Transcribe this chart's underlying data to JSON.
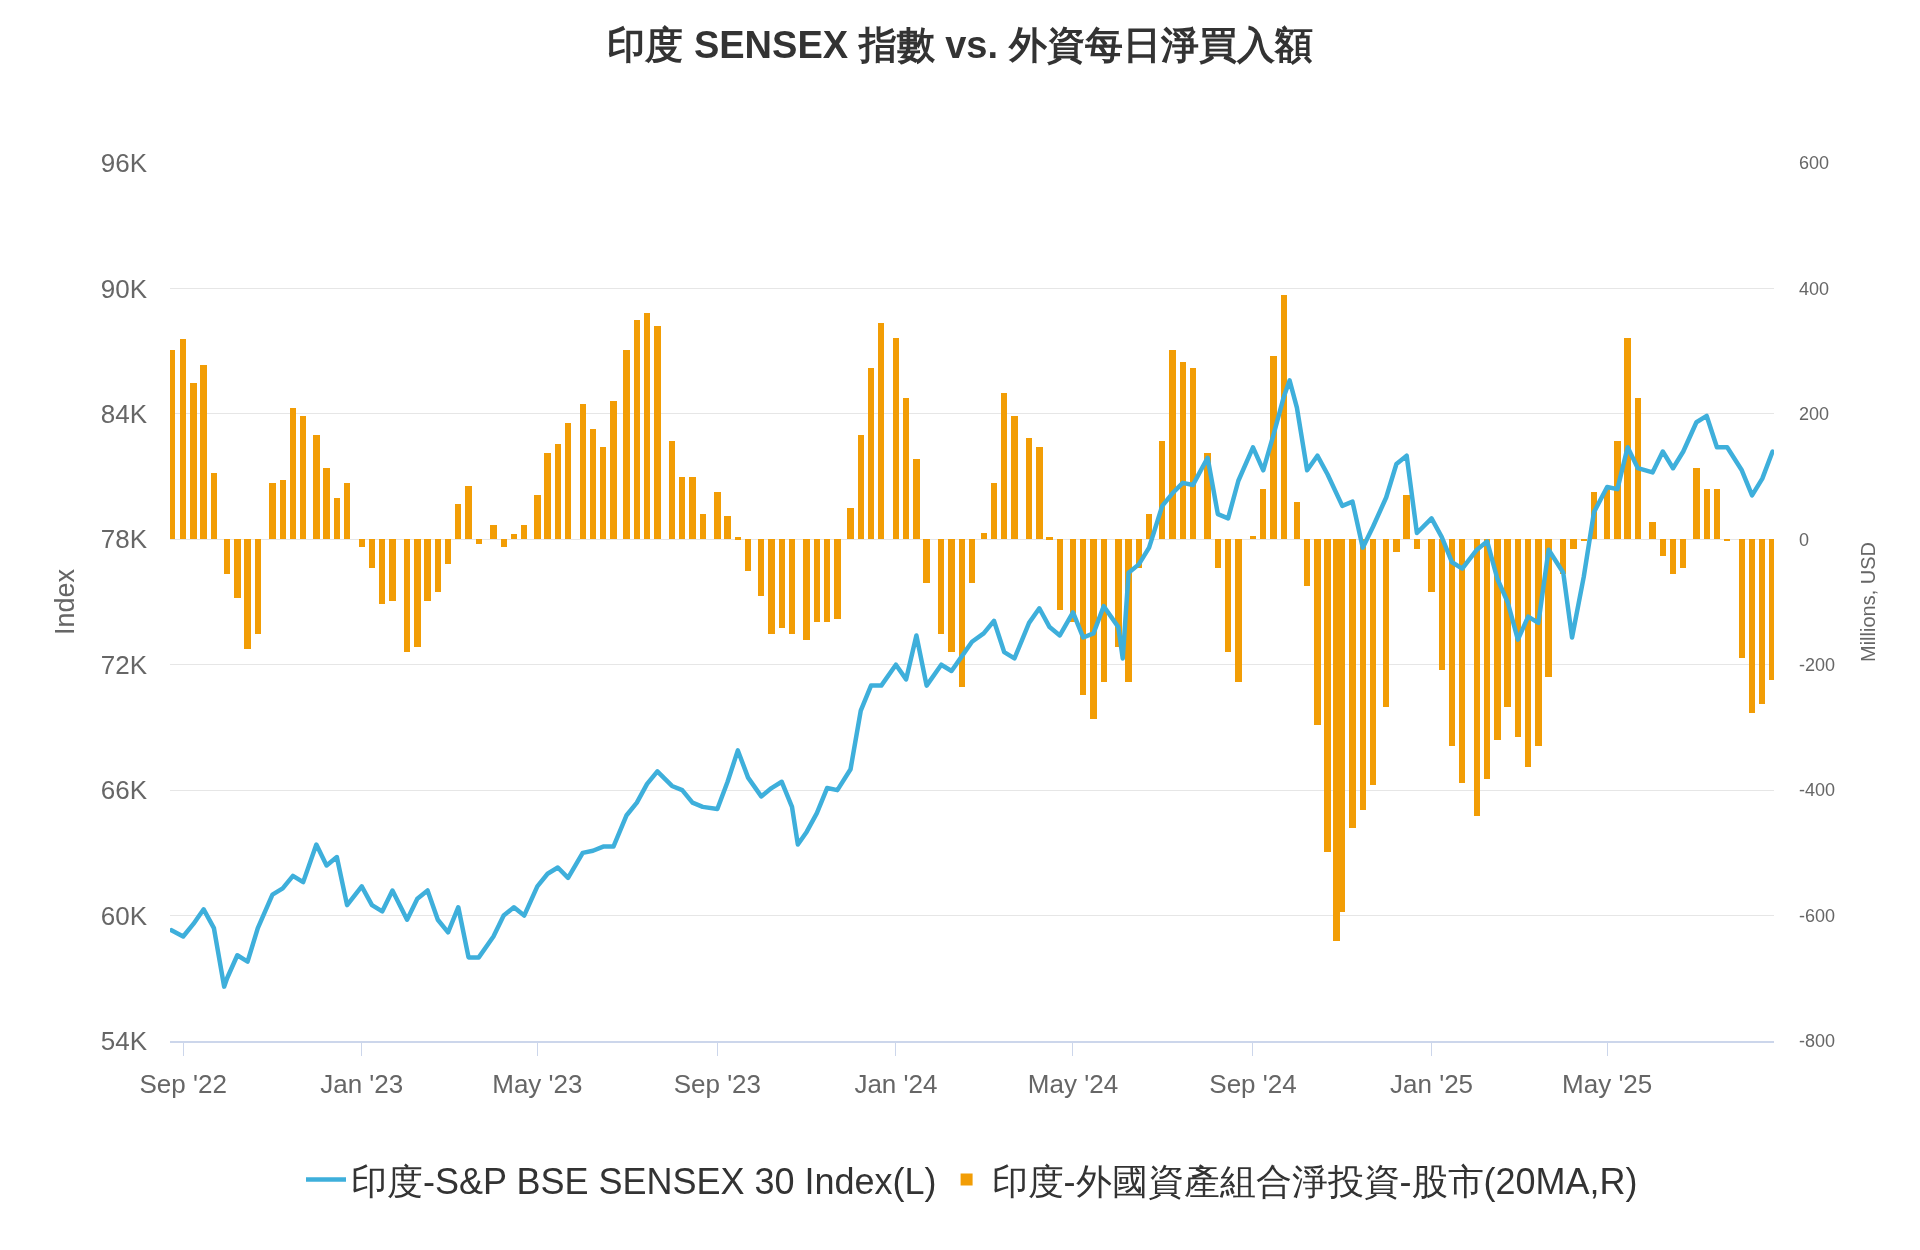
{
  "chart_data": {
    "type": "line",
    "title": "印度 SENSEX 指數 vs. 外資每日淨買入額",
    "ylabel": "Index",
    "y2label": "Millions, USD",
    "xlim": [
      "2022-08-23",
      "2025-08-23"
    ],
    "xticks": [
      {
        "value": "2022-09-01",
        "label": "Sep '22"
      },
      {
        "value": "2023-01-01",
        "label": "Jan '23"
      },
      {
        "value": "2023-05-01",
        "label": "May '23"
      },
      {
        "value": "2023-09-01",
        "label": "Sep '23"
      },
      {
        "value": "2024-01-01",
        "label": "Jan '24"
      },
      {
        "value": "2024-05-01",
        "label": "May '24"
      },
      {
        "value": "2024-09-01",
        "label": "Sep '24"
      },
      {
        "value": "2025-01-01",
        "label": "Jan '25"
      },
      {
        "value": "2025-05-01",
        "label": "May '25"
      }
    ],
    "ylim": [
      54000,
      96000
    ],
    "yticks": [
      {
        "value": 54000,
        "label": "54K"
      },
      {
        "value": 60000,
        "label": "60K"
      },
      {
        "value": 66000,
        "label": "66K"
      },
      {
        "value": 72000,
        "label": "72K"
      },
      {
        "value": 78000,
        "label": "78K"
      },
      {
        "value": 84000,
        "label": "84K"
      },
      {
        "value": 90000,
        "label": "90K"
      },
      {
        "value": 96000,
        "label": "96K"
      }
    ],
    "y2lim": [
      -800,
      600
    ],
    "y2ticks": [
      -800,
      -600,
      -400,
      -200,
      0,
      200,
      400,
      600
    ],
    "grid": "y",
    "legend": "bottom",
    "series": [
      {
        "name": "印度-S&P BSE SENSEX 30 Index(L)",
        "color": "#3eafdb",
        "x": [
          "2022-08-24",
          "2022-09-01",
          "2022-09-08",
          "2022-09-15",
          "2022-09-22",
          "2022-09-29",
          "2022-10-01",
          "2022-10-08",
          "2022-10-15",
          "2022-10-22",
          "2022-11-01",
          "2022-11-08",
          "2022-11-15",
          "2022-11-22",
          "2022-12-01",
          "2022-12-08",
          "2022-12-15",
          "2022-12-22",
          "2023-01-01",
          "2023-01-08",
          "2023-01-15",
          "2023-01-22",
          "2023-02-01",
          "2023-02-08",
          "2023-02-15",
          "2023-02-22",
          "2023-03-01",
          "2023-03-08",
          "2023-03-15",
          "2023-03-22",
          "2023-04-01",
          "2023-04-08",
          "2023-04-15",
          "2023-04-22",
          "2023-05-01",
          "2023-05-08",
          "2023-05-15",
          "2023-05-22",
          "2023-06-01",
          "2023-06-08",
          "2023-06-15",
          "2023-06-22",
          "2023-07-01",
          "2023-07-08",
          "2023-07-15",
          "2023-07-22",
          "2023-08-01",
          "2023-08-08",
          "2023-08-15",
          "2023-08-22",
          "2023-09-01",
          "2023-09-08",
          "2023-09-15",
          "2023-09-22",
          "2023-10-01",
          "2023-10-08",
          "2023-10-15",
          "2023-10-22",
          "2023-10-26",
          "2023-11-01",
          "2023-11-08",
          "2023-11-15",
          "2023-11-22",
          "2023-12-01",
          "2023-12-08",
          "2023-12-15",
          "2023-12-22",
          "2024-01-01",
          "2024-01-08",
          "2024-01-15",
          "2024-01-22",
          "2024-02-01",
          "2024-02-08",
          "2024-02-15",
          "2024-02-22",
          "2024-03-01",
          "2024-03-08",
          "2024-03-15",
          "2024-03-22",
          "2024-04-01",
          "2024-04-08",
          "2024-04-15",
          "2024-04-22",
          "2024-05-01",
          "2024-05-08",
          "2024-05-15",
          "2024-05-22",
          "2024-06-01",
          "2024-06-04",
          "2024-06-08",
          "2024-06-15",
          "2024-06-22",
          "2024-07-01",
          "2024-07-08",
          "2024-07-15",
          "2024-07-22",
          "2024-08-01",
          "2024-08-08",
          "2024-08-15",
          "2024-08-22",
          "2024-09-01",
          "2024-09-08",
          "2024-09-15",
          "2024-09-22",
          "2024-09-26",
          "2024-10-01",
          "2024-10-08",
          "2024-10-15",
          "2024-10-22",
          "2024-11-01",
          "2024-11-08",
          "2024-11-15",
          "2024-11-22",
          "2024-12-01",
          "2024-12-08",
          "2024-12-15",
          "2024-12-22",
          "2025-01-01",
          "2025-01-08",
          "2025-01-15",
          "2025-01-22",
          "2025-02-01",
          "2025-02-08",
          "2025-02-15",
          "2025-02-22",
          "2025-03-01",
          "2025-03-08",
          "2025-03-15",
          "2025-03-22",
          "2025-04-01",
          "2025-04-07",
          "2025-04-15",
          "2025-04-22",
          "2025-05-01",
          "2025-05-08",
          "2025-05-15",
          "2025-05-22",
          "2025-06-01",
          "2025-06-08",
          "2025-06-15",
          "2025-06-22",
          "2025-07-01",
          "2025-07-08",
          "2025-07-15",
          "2025-07-22",
          "2025-08-01",
          "2025-08-08",
          "2025-08-15",
          "2025-08-22"
        ],
        "values": [
          59300,
          59000,
          59600,
          60300,
          59400,
          56600,
          57000,
          58100,
          57800,
          59400,
          61000,
          61300,
          61900,
          61600,
          63400,
          62400,
          62800,
          60500,
          61400,
          60500,
          60200,
          61200,
          59800,
          60800,
          61200,
          59800,
          59200,
          60400,
          58000,
          58000,
          59000,
          60000,
          60400,
          60000,
          61400,
          62000,
          62300,
          61800,
          63000,
          63100,
          63300,
          63300,
          64800,
          65400,
          66300,
          66900,
          66200,
          66000,
          65400,
          65200,
          65100,
          66400,
          67900,
          66600,
          65700,
          66100,
          66400,
          65200,
          63400,
          64000,
          64900,
          66100,
          66000,
          67000,
          69800,
          71000,
          71000,
          72000,
          71300,
          73400,
          71000,
          72000,
          71700,
          72400,
          73100,
          73500,
          74100,
          72600,
          72300,
          74000,
          74700,
          73800,
          73400,
          74500,
          73300,
          73500,
          74800,
          73800,
          72300,
          76400,
          76800,
          77600,
          79600,
          80200,
          80700,
          80600,
          81900,
          79200,
          79000,
          80800,
          82400,
          81300,
          83000,
          84800,
          85600,
          84300,
          81300,
          82000,
          81100,
          79600,
          79800,
          77600,
          78600,
          80000,
          81600,
          82000,
          78300,
          79000,
          78100,
          76900,
          76600,
          77500,
          77900,
          76100,
          75000,
          73200,
          74300,
          74000,
          77500,
          76400,
          73300,
          76200,
          79300,
          80500,
          80400,
          82400,
          81400,
          81200,
          82200,
          81400,
          82200,
          83600,
          83900,
          82400,
          82400,
          81300,
          80100,
          80900,
          82200
        ]
      },
      {
        "name": "印度-外國資產組合淨投資-股市(20MA,R)",
        "type": "bar",
        "axis": "y2",
        "color": "#f29d05",
        "x": [
          "2022-08-24",
          "2022-09-01",
          "2022-09-08",
          "2022-09-15",
          "2022-09-22",
          "2022-10-01",
          "2022-10-08",
          "2022-10-15",
          "2022-10-22",
          "2022-11-01",
          "2022-11-08",
          "2022-11-15",
          "2022-11-22",
          "2022-12-01",
          "2022-12-08",
          "2022-12-15",
          "2022-12-22",
          "2023-01-01",
          "2023-01-08",
          "2023-01-15",
          "2023-01-22",
          "2023-02-01",
          "2023-02-08",
          "2023-02-15",
          "2023-02-22",
          "2023-03-01",
          "2023-03-08",
          "2023-03-15",
          "2023-03-22",
          "2023-04-01",
          "2023-04-08",
          "2023-04-15",
          "2023-04-22",
          "2023-05-01",
          "2023-05-08",
          "2023-05-15",
          "2023-05-22",
          "2023-06-01",
          "2023-06-08",
          "2023-06-15",
          "2023-06-22",
          "2023-07-01",
          "2023-07-08",
          "2023-07-15",
          "2023-07-22",
          "2023-08-01",
          "2023-08-08",
          "2023-08-15",
          "2023-08-22",
          "2023-09-01",
          "2023-09-08",
          "2023-09-15",
          "2023-09-22",
          "2023-10-01",
          "2023-10-08",
          "2023-10-15",
          "2023-10-22",
          "2023-11-01",
          "2023-11-08",
          "2023-11-15",
          "2023-11-22",
          "2023-12-01",
          "2023-12-08",
          "2023-12-15",
          "2023-12-22",
          "2024-01-01",
          "2024-01-08",
          "2024-01-15",
          "2024-01-22",
          "2024-02-01",
          "2024-02-08",
          "2024-02-15",
          "2024-02-22",
          "2024-03-01",
          "2024-03-08",
          "2024-03-15",
          "2024-03-22",
          "2024-04-01",
          "2024-04-08",
          "2024-04-15",
          "2024-04-22",
          "2024-05-01",
          "2024-05-08",
          "2024-05-15",
          "2024-05-22",
          "2024-06-01",
          "2024-06-08",
          "2024-06-15",
          "2024-06-22",
          "2024-07-01",
          "2024-07-08",
          "2024-07-15",
          "2024-07-22",
          "2024-08-01",
          "2024-08-08",
          "2024-08-15",
          "2024-08-22",
          "2024-09-01",
          "2024-09-08",
          "2024-09-15",
          "2024-09-22",
          "2024-10-01",
          "2024-10-08",
          "2024-10-15",
          "2024-10-22",
          "2024-10-28",
          "2024-11-01",
          "2024-11-08",
          "2024-11-15",
          "2024-11-22",
          "2024-12-01",
          "2024-12-08",
          "2024-12-15",
          "2024-12-22",
          "2025-01-01",
          "2025-01-08",
          "2025-01-15",
          "2025-01-22",
          "2025-02-01",
          "2025-02-08",
          "2025-02-15",
          "2025-02-22",
          "2025-03-01",
          "2025-03-08",
          "2025-03-15",
          "2025-03-22",
          "2025-04-01",
          "2025-04-08",
          "2025-04-15",
          "2025-04-22",
          "2025-05-01",
          "2025-05-08",
          "2025-05-15",
          "2025-05-22",
          "2025-06-01",
          "2025-06-08",
          "2025-06-15",
          "2025-06-22",
          "2025-07-01",
          "2025-07-08",
          "2025-07-15",
          "2025-07-22",
          "2025-08-01",
          "2025-08-08",
          "2025-08-15",
          "2025-08-22"
        ],
        "values": [
          302,
          320,
          249,
          278,
          105,
          -55,
          -94,
          -175,
          -151,
          90,
          94,
          210,
          196,
          167,
          114,
          66,
          90,
          -12,
          -45,
          -103,
          -98,
          -180,
          -171,
          -98,
          -84,
          -40,
          56,
          85,
          -7,
          22,
          -12,
          8,
          22,
          70,
          138,
          152,
          186,
          215,
          176,
          147,
          220,
          302,
          350,
          361,
          340,
          157,
          99,
          99,
          41,
          75,
          37,
          3,
          -50,
          -90,
          -151,
          -142,
          -151,
          -161,
          -132,
          -132,
          -127,
          50,
          167,
          273,
          345,
          321,
          225,
          128,
          -70,
          -151,
          -180,
          -235,
          -70,
          10,
          90,
          234,
          196,
          162,
          147,
          3,
          -113,
          -132,
          -248,
          -286,
          -228,
          -171,
          -228,
          -45,
          41,
          157,
          302,
          282,
          273,
          138,
          -45,
          -180,
          -228,
          5,
          80,
          292,
          390,
          60,
          -74,
          -296,
          -498,
          -640,
          -595,
          -460,
          -431,
          -392,
          -267,
          -20,
          70,
          -16,
          -84,
          -209,
          -330,
          -388,
          -441,
          -383,
          -320,
          -267,
          -315,
          -363,
          -330,
          -219,
          -55,
          -16,
          -2,
          75,
          80,
          157,
          321,
          225,
          27,
          -26,
          -55,
          -45,
          114,
          80,
          80,
          -2,
          -190,
          -277,
          -262,
          -224
        ]
      }
    ]
  }
}
